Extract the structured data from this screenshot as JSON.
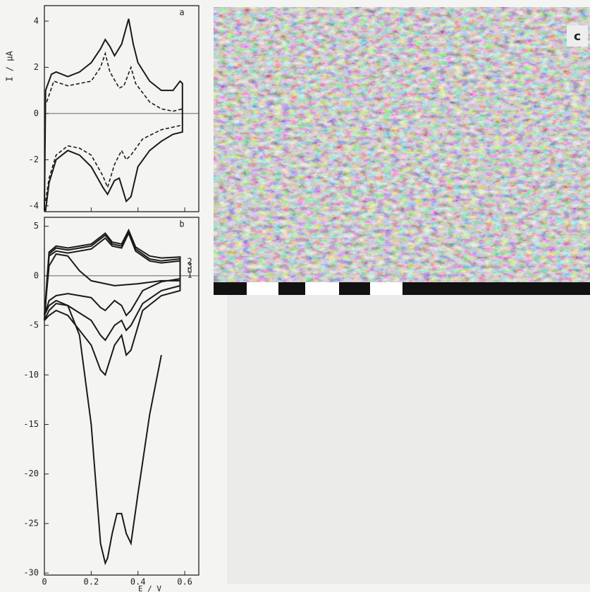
{
  "chart_data": [
    {
      "type": "line",
      "label": "a",
      "ylabel": "I / μA",
      "xlim": [
        0,
        0.66
      ],
      "ylim": [
        -4.25,
        4.67
      ],
      "xticks": [
        0,
        0.2,
        0.4,
        0.6
      ],
      "yticks": [
        -4,
        -2,
        0,
        2,
        4
      ],
      "series": [
        {
          "color": "#1a1a1a",
          "dashed": false,
          "x": [
            0.0,
            0.005,
            0.03,
            0.05,
            0.1,
            0.15,
            0.2,
            0.24,
            0.26,
            0.28,
            0.3,
            0.33,
            0.36,
            0.38,
            0.4,
            0.45,
            0.5,
            0.55,
            0.58,
            0.59,
            0.59,
            0.55,
            0.5,
            0.45,
            0.4,
            0.37,
            0.35,
            0.32,
            0.3,
            0.27,
            0.25,
            0.2,
            0.15,
            0.1,
            0.05,
            0.02,
            0.005,
            0.0
          ],
          "values": [
            -4.2,
            1.0,
            1.7,
            1.8,
            1.6,
            1.8,
            2.2,
            2.8,
            3.2,
            2.9,
            2.5,
            3.0,
            4.1,
            3.0,
            2.2,
            1.4,
            1.0,
            1.0,
            1.4,
            1.3,
            -0.8,
            -0.9,
            -1.2,
            -1.6,
            -2.3,
            -3.6,
            -3.8,
            -2.8,
            -2.9,
            -3.5,
            -3.2,
            -2.3,
            -1.8,
            -1.6,
            -2.0,
            -3.0,
            -4.2,
            -4.2
          ]
        },
        {
          "color": "#1a1a1a",
          "dashed": true,
          "x": [
            0.01,
            0.04,
            0.1,
            0.2,
            0.24,
            0.26,
            0.28,
            0.32,
            0.34,
            0.37,
            0.39,
            0.45,
            0.5,
            0.55,
            0.59,
            0.59,
            0.5,
            0.42,
            0.37,
            0.35,
            0.33,
            0.3,
            0.27,
            0.25,
            0.2,
            0.15,
            0.1,
            0.05,
            0.02,
            0.005
          ],
          "values": [
            0.5,
            1.4,
            1.2,
            1.4,
            2.0,
            2.6,
            1.8,
            1.1,
            1.2,
            2.0,
            1.3,
            0.5,
            0.2,
            0.1,
            0.2,
            -0.5,
            -0.7,
            -1.1,
            -1.8,
            -2.0,
            -1.6,
            -2.2,
            -3.2,
            -2.7,
            -1.8,
            -1.5,
            -1.4,
            -1.8,
            -2.8,
            -3.8
          ]
        }
      ]
    },
    {
      "type": "line",
      "label": "b",
      "xlabel": "E / V",
      "xlim": [
        0,
        0.66
      ],
      "ylim": [
        -30.2,
        5.9
      ],
      "xticks": [
        0,
        0.2,
        0.4,
        0.6
      ],
      "yticks": [
        5,
        0,
        -5,
        -10,
        -15,
        -20,
        -25,
        -30
      ],
      "series": [
        {
          "name": "1",
          "color": "#1a1a1a",
          "dashed": false,
          "x": [
            0.5,
            0.45,
            0.4,
            0.37,
            0.35,
            0.33,
            0.31,
            0.29,
            0.27,
            0.26,
            0.24,
            0.2,
            0.15,
            0.1,
            0.05,
            0.02,
            0.0,
            0.02,
            0.05,
            0.1,
            0.15,
            0.2,
            0.3,
            0.4,
            0.5,
            0.58
          ],
          "values": [
            -8,
            -14,
            -22,
            -27,
            -26,
            -24,
            -24,
            -26,
            -28.5,
            -29,
            -27,
            -15,
            -6,
            -3,
            -2.5,
            -3,
            -4,
            1,
            2.2,
            2,
            0.5,
            -0.5,
            -1,
            -0.8,
            -0.5,
            -0.5
          ]
        },
        {
          "name": "2",
          "color": "#1a1a1a",
          "dashed": false,
          "x": [
            0.0,
            0.02,
            0.05,
            0.1,
            0.2,
            0.26,
            0.29,
            0.33,
            0.36,
            0.39,
            0.45,
            0.5,
            0.58,
            0.58,
            0.5,
            0.42,
            0.37,
            0.35,
            0.33,
            0.3,
            0.26,
            0.24,
            0.2,
            0.1,
            0.05,
            0.02,
            0.0
          ],
          "values": [
            -4.5,
            2,
            2.5,
            2.3,
            2.7,
            3.8,
            3.0,
            2.8,
            4.3,
            2.5,
            1.5,
            1.3,
            1.5,
            -1.5,
            -2,
            -3.5,
            -7.5,
            -8,
            -6,
            -7,
            -10,
            -9.5,
            -7,
            -4,
            -3.5,
            -4,
            -4.5
          ]
        },
        {
          "name": "3",
          "color": "#1a1a1a",
          "dashed": false,
          "x": [
            0.0,
            0.02,
            0.05,
            0.1,
            0.2,
            0.26,
            0.29,
            0.33,
            0.36,
            0.39,
            0.45,
            0.5,
            0.58,
            0.58,
            0.5,
            0.42,
            0.37,
            0.35,
            0.33,
            0.3,
            0.26,
            0.24,
            0.2,
            0.1,
            0.05,
            0.02,
            0.0
          ],
          "values": [
            -4.5,
            2.2,
            2.8,
            2.6,
            3.0,
            4.1,
            3.2,
            3.0,
            4.5,
            2.7,
            1.7,
            1.5,
            1.7,
            -1,
            -1.5,
            -2.8,
            -5,
            -5.5,
            -4.5,
            -5,
            -6.5,
            -6,
            -4.5,
            -3,
            -2.8,
            -3.5,
            -4.5
          ]
        },
        {
          "name": "n",
          "color": "#1a1a1a",
          "dashed": false,
          "x": [
            0.0,
            0.02,
            0.05,
            0.1,
            0.2,
            0.26,
            0.29,
            0.33,
            0.36,
            0.39,
            0.45,
            0.5,
            0.58,
            0.58,
            0.5,
            0.42,
            0.37,
            0.35,
            0.33,
            0.3,
            0.26,
            0.24,
            0.2,
            0.1,
            0.05,
            0.02,
            0.0
          ],
          "values": [
            -4,
            2.4,
            3,
            2.8,
            3.2,
            4.3,
            3.4,
            3.2,
            4.6,
            2.9,
            2,
            1.8,
            1.9,
            -0.3,
            -0.6,
            -1.5,
            -3.5,
            -4,
            -3,
            -2.5,
            -3.5,
            -3.2,
            -2.2,
            -1.8,
            -2,
            -2.5,
            -4
          ]
        }
      ]
    }
  ],
  "panel_c": {
    "label": "c"
  }
}
